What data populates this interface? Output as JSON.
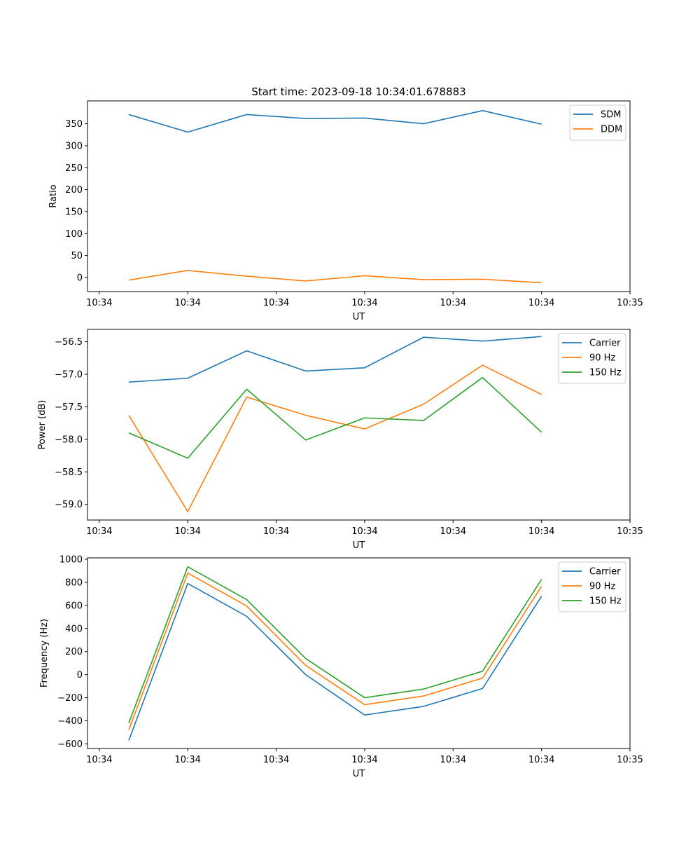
{
  "figure": {
    "title": "Start time: 2023-09-18 10:34:01.678883"
  },
  "chart_data": [
    {
      "type": "line",
      "title": "Start time: 2023-09-18 10:34:01.678883",
      "xlabel": "UT",
      "ylabel": "Ratio",
      "x": [
        1,
        2,
        3,
        4,
        5,
        6,
        7,
        8
      ],
      "xlim": [
        0.3,
        9.5
      ],
      "x_ticks": [
        0.5,
        2,
        3.5,
        5,
        6.5,
        8,
        9.5
      ],
      "x_tick_labels": [
        "10:34",
        "10:34",
        "10:34",
        "10:34",
        "10:34",
        "10:34",
        "10:35"
      ],
      "ylim": [
        -32,
        402
      ],
      "y_ticks": [
        0,
        50,
        100,
        150,
        200,
        250,
        300,
        350
      ],
      "y_tick_labels": [
        "0",
        "50",
        "100",
        "150",
        "200",
        "250",
        "300",
        "350"
      ],
      "legend_position": "top-right",
      "series": [
        {
          "name": "SDM",
          "color": "#1f77b4",
          "values": [
            371,
            331,
            371,
            362,
            363,
            350,
            380,
            349
          ]
        },
        {
          "name": "DDM",
          "color": "#ff7f0e",
          "values": [
            -6,
            16,
            3,
            -8,
            4,
            -5,
            -4,
            -12
          ]
        }
      ]
    },
    {
      "type": "line",
      "xlabel": "UT",
      "ylabel": "Power (dB)",
      "x": [
        1,
        2,
        3,
        4,
        5,
        6,
        7,
        8
      ],
      "xlim": [
        0.3,
        9.5
      ],
      "x_ticks": [
        0.5,
        2,
        3.5,
        5,
        6.5,
        8,
        9.5
      ],
      "x_tick_labels": [
        "10:34",
        "10:34",
        "10:34",
        "10:34",
        "10:34",
        "10:34",
        "10:35"
      ],
      "ylim": [
        -59.24,
        -56.31
      ],
      "y_ticks": [
        -59.0,
        -58.5,
        -58.0,
        -57.5,
        -57.0,
        -56.5
      ],
      "y_tick_labels": [
        "−59.0",
        "−58.5",
        "−58.0",
        "−57.5",
        "−57.0",
        "−56.5"
      ],
      "legend_position": "top-right",
      "series": [
        {
          "name": "Carrier",
          "color": "#1f77b4",
          "values": [
            -57.12,
            -57.06,
            -56.64,
            -56.95,
            -56.9,
            -56.43,
            -56.49,
            -56.42
          ]
        },
        {
          "name": "90 Hz",
          "color": "#ff7f0e",
          "values": [
            -57.63,
            -59.11,
            -57.35,
            -57.63,
            -57.84,
            -57.46,
            -56.86,
            -57.31
          ]
        },
        {
          "name": "150 Hz",
          "color": "#2ca02c",
          "values": [
            -57.9,
            -58.29,
            -57.23,
            -58.01,
            -57.67,
            -57.71,
            -57.05,
            -57.89
          ]
        }
      ]
    },
    {
      "type": "line",
      "xlabel": "UT",
      "ylabel": "Frequency (Hz)",
      "x": [
        1,
        2,
        3,
        4,
        5,
        6,
        7,
        8
      ],
      "xlim": [
        0.3,
        9.5
      ],
      "x_ticks": [
        0.5,
        2,
        3.5,
        5,
        6.5,
        8,
        9.5
      ],
      "x_tick_labels": [
        "10:34",
        "10:34",
        "10:34",
        "10:34",
        "10:34",
        "10:34",
        "10:35"
      ],
      "ylim": [
        -640,
        1012
      ],
      "y_ticks": [
        -600,
        -400,
        -200,
        0,
        200,
        400,
        600,
        800,
        1000
      ],
      "y_tick_labels": [
        "−600",
        "−400",
        "−200",
        "0",
        "200",
        "400",
        "600",
        "800",
        "1000"
      ],
      "legend_position": "top-right",
      "series": [
        {
          "name": "Carrier",
          "color": "#1f77b4",
          "values": [
            -570,
            790,
            505,
            0,
            -350,
            -275,
            -120,
            680
          ]
        },
        {
          "name": "90 Hz",
          "color": "#ff7f0e",
          "values": [
            -480,
            880,
            595,
            80,
            -260,
            -185,
            -30,
            765
          ]
        },
        {
          "name": "150 Hz",
          "color": "#2ca02c",
          "values": [
            -420,
            935,
            650,
            140,
            -200,
            -125,
            30,
            825
          ]
        }
      ]
    }
  ]
}
